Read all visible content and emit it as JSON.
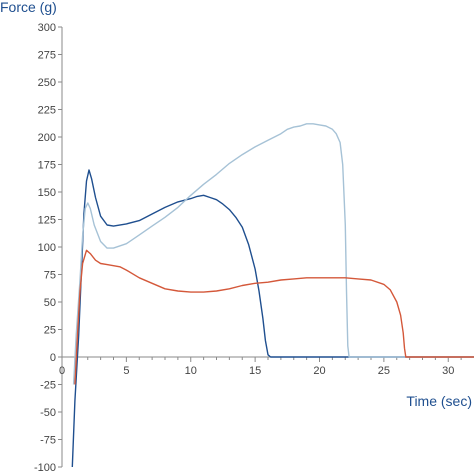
{
  "chart_data": {
    "type": "line",
    "ylabel": "Force (g)",
    "xlabel": "Time (sec)",
    "xlim": [
      0,
      32
    ],
    "ylim": [
      -100,
      300
    ],
    "x_ticks": [
      0,
      5,
      10,
      15,
      20,
      25,
      30
    ],
    "y_ticks": [
      300,
      275,
      250,
      225,
      200,
      175,
      150,
      125,
      100,
      75,
      50,
      25,
      0,
      -25,
      -50,
      -75,
      -100
    ],
    "grid": false,
    "axis_title_color": "#1f4f8f",
    "series": [
      {
        "color": "#1f4f8f",
        "points": [
          [
            0.8,
            -100
          ],
          [
            1.0,
            -40
          ],
          [
            1.3,
            20
          ],
          [
            1.5,
            75
          ],
          [
            1.7,
            130
          ],
          [
            1.9,
            160
          ],
          [
            2.1,
            170
          ],
          [
            2.3,
            162
          ],
          [
            2.6,
            145
          ],
          [
            3.0,
            128
          ],
          [
            3.5,
            120
          ],
          [
            4.0,
            119
          ],
          [
            5.0,
            121
          ],
          [
            6.0,
            124
          ],
          [
            7.0,
            130
          ],
          [
            8.0,
            136
          ],
          [
            9.0,
            141
          ],
          [
            10.0,
            144
          ],
          [
            10.5,
            146
          ],
          [
            11.0,
            147
          ],
          [
            11.5,
            145
          ],
          [
            12.0,
            143
          ],
          [
            12.5,
            139
          ],
          [
            13.0,
            134
          ],
          [
            13.5,
            127
          ],
          [
            14.0,
            118
          ],
          [
            14.5,
            102
          ],
          [
            15.0,
            80
          ],
          [
            15.3,
            60
          ],
          [
            15.6,
            35
          ],
          [
            15.8,
            15
          ],
          [
            16.0,
            2
          ],
          [
            16.2,
            0
          ],
          [
            32,
            0
          ]
        ]
      },
      {
        "color": "#a6c2d6",
        "points": [
          [
            0.9,
            -25
          ],
          [
            1.1,
            20
          ],
          [
            1.4,
            70
          ],
          [
            1.6,
            110
          ],
          [
            1.8,
            135
          ],
          [
            2.0,
            140
          ],
          [
            2.2,
            135
          ],
          [
            2.5,
            120
          ],
          [
            3.0,
            105
          ],
          [
            3.5,
            99
          ],
          [
            4.0,
            99
          ],
          [
            5.0,
            103
          ],
          [
            6.0,
            111
          ],
          [
            7.0,
            119
          ],
          [
            8.0,
            127
          ],
          [
            9.0,
            136
          ],
          [
            10.0,
            147
          ],
          [
            11.0,
            157
          ],
          [
            12.0,
            166
          ],
          [
            13.0,
            176
          ],
          [
            14.0,
            184
          ],
          [
            15.0,
            191
          ],
          [
            16.0,
            197
          ],
          [
            17.0,
            203
          ],
          [
            17.5,
            207
          ],
          [
            18.0,
            209
          ],
          [
            18.5,
            210
          ],
          [
            19.0,
            212
          ],
          [
            19.5,
            212
          ],
          [
            20.0,
            211
          ],
          [
            20.5,
            210
          ],
          [
            21.0,
            207
          ],
          [
            21.3,
            203
          ],
          [
            21.6,
            195
          ],
          [
            21.8,
            175
          ],
          [
            22.0,
            120
          ],
          [
            22.1,
            60
          ],
          [
            22.2,
            10
          ],
          [
            22.3,
            0
          ],
          [
            32,
            0
          ]
        ]
      },
      {
        "color": "#d4583a",
        "points": [
          [
            1.0,
            -25
          ],
          [
            1.2,
            20
          ],
          [
            1.4,
            60
          ],
          [
            1.6,
            85
          ],
          [
            1.9,
            97
          ],
          [
            2.2,
            94
          ],
          [
            2.6,
            88
          ],
          [
            3.0,
            85
          ],
          [
            3.5,
            84
          ],
          [
            4.5,
            82
          ],
          [
            5.0,
            79
          ],
          [
            6.0,
            72
          ],
          [
            7.0,
            67
          ],
          [
            8.0,
            62
          ],
          [
            9.0,
            60
          ],
          [
            10.0,
            59
          ],
          [
            11.0,
            59
          ],
          [
            12.0,
            60
          ],
          [
            13.0,
            62
          ],
          [
            14.0,
            65
          ],
          [
            15.0,
            67
          ],
          [
            16.0,
            68
          ],
          [
            17.0,
            70
          ],
          [
            18.0,
            71
          ],
          [
            19.0,
            72
          ],
          [
            20.0,
            72
          ],
          [
            21.0,
            72
          ],
          [
            22.0,
            72
          ],
          [
            23.0,
            71
          ],
          [
            24.0,
            70
          ],
          [
            25.0,
            66
          ],
          [
            25.5,
            61
          ],
          [
            26.0,
            50
          ],
          [
            26.3,
            38
          ],
          [
            26.5,
            22
          ],
          [
            26.6,
            8
          ],
          [
            26.7,
            0
          ],
          [
            32,
            0
          ]
        ]
      }
    ]
  }
}
